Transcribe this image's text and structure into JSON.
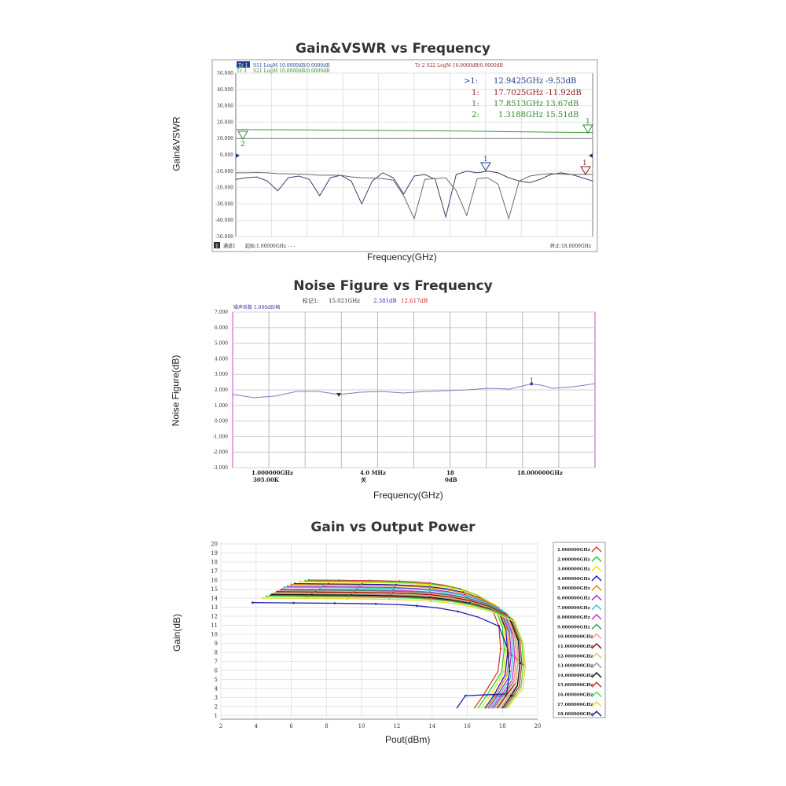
{
  "charts": {
    "gain_vswr": {
      "title": "Gain&VSWR vs Frequency",
      "xlabel": "Frequency(GHz)",
      "ylabel": "Gain&VSWR"
    },
    "noise": {
      "title": "Noise Figure vs Frequency",
      "xlabel": "Frequency(GHz)",
      "ylabel": "Noise Figure(dB)"
    },
    "gain_pout": {
      "title": "Gain vs Output Power",
      "xlabel": "Pout(dBm)",
      "ylabel": "Gain(dB)"
    }
  },
  "chart_data": [
    {
      "type": "line",
      "title": "Gain&VSWR vs Frequency",
      "xlabel": "Frequency(GHz)",
      "ylabel": "Gain&VSWR",
      "xlim": [
        1,
        18
      ],
      "ylim": [
        -50,
        50
      ],
      "yticks": [
        "50.000",
        "40.000",
        "30.000",
        "20.000",
        "10.000",
        "0.000",
        "-10.000",
        "-20.000",
        "-30.000",
        "-40.000",
        "-50.000"
      ],
      "header": {
        "tr1": "Tr 1",
        "tr1_text": "S11 LogM 10.0000dB/0.0000dB",
        "tr3": "Tr 3",
        "tr3_text": "S21 LogM 10.0000dB/0.0000dB",
        "tr2_text": "Tr 2  S22 LogM 10.0000dB/0.0000dB"
      },
      "markers": [
        {
          "label": ">1:",
          "freq": "12.9425GHz",
          "value": "-9.53dB",
          "color": "#1f3d8c"
        },
        {
          "label": "1:",
          "freq": "17.7025GHz",
          "value": "-11.92dB",
          "color": "#8b1a1a"
        },
        {
          "label": "1:",
          "freq": "17.8513GHz",
          "value": "13.67dB",
          "color": "#2e8b2e"
        },
        {
          "label": "2:",
          "freq": "1.3188GHz",
          "value": "15.51dB",
          "color": "#2e8b2e"
        }
      ],
      "marker_tags": [
        "1",
        "1",
        "1",
        "2"
      ],
      "footer": {
        "ch": "1",
        "ch_text": "通道1",
        "start": "起始:1.00000GHz - - -",
        "stop": "终止:18.0000GHz"
      },
      "series": [
        {
          "name": "S21",
          "color": "#3a9a3a",
          "x": [
            1,
            1.32,
            2,
            4,
            6,
            8,
            10,
            12,
            14,
            16,
            17.85,
            18
          ],
          "y": [
            15.5,
            15.51,
            15.4,
            15.3,
            15.1,
            14.9,
            14.7,
            14.5,
            14.2,
            13.9,
            13.67,
            13.6
          ]
        },
        {
          "name": "S11",
          "color": "#3a3f6a",
          "x": [
            1,
            1.5,
            2,
            2.5,
            3,
            3.5,
            4,
            4.5,
            5,
            5.5,
            6,
            6.5,
            7,
            7.5,
            8,
            8.5,
            9,
            9.5,
            10,
            10.5,
            11,
            11.5,
            12,
            12.5,
            13,
            13.5,
            14,
            14.5,
            15,
            15.5,
            16,
            16.5,
            17,
            17.5,
            18
          ],
          "y": [
            -15,
            -14,
            -13.5,
            -16,
            -22,
            -14,
            -13,
            -15,
            -25,
            -14,
            -12.5,
            -16,
            -30,
            -16,
            -11,
            -14,
            -24,
            -13,
            -12,
            -15,
            -38,
            -12,
            -10,
            -11,
            -10,
            -11,
            -14,
            -16,
            -17,
            -15,
            -12,
            -11,
            -12,
            -14,
            -16
          ]
        },
        {
          "name": "S22",
          "color": "#6a6a6a",
          "x": [
            1,
            1.5,
            2,
            2.5,
            3,
            3.5,
            4,
            4.5,
            5,
            5.5,
            6,
            6.5,
            7,
            7.5,
            8,
            8.5,
            9,
            9.5,
            10,
            10.5,
            11,
            11.5,
            12,
            12.5,
            13,
            13.5,
            14,
            14.5,
            15,
            15.5,
            16,
            16.5,
            17,
            17.5,
            18
          ],
          "y": [
            -11,
            -11,
            -10.8,
            -11,
            -11.5,
            -11.6,
            -11.8,
            -12,
            -12.5,
            -12.4,
            -12.5,
            -13.5,
            -14,
            -14.2,
            -14.5,
            -15.5,
            -25,
            -39,
            -15,
            -14.5,
            -14,
            -22,
            -37,
            -14.5,
            -14,
            -18,
            -39,
            -16,
            -13,
            -12,
            -11.5,
            -11.8,
            -12,
            -11.9,
            -12
          ]
        }
      ]
    },
    {
      "type": "line",
      "title": "Noise Figure vs Frequency",
      "xlabel": "Frequency(GHz)",
      "ylabel": "Noise Figure(dB)",
      "xlim": [
        1,
        18
      ],
      "ylim": [
        -3,
        7
      ],
      "yticks": [
        "7.000",
        "6.000",
        "5.000",
        "4.000",
        "3.000",
        "2.000",
        "1.000",
        "0.000",
        "-1.000",
        "-2.000",
        "-3.000"
      ],
      "header": {
        "scale": "噪声系数  1.000dB/格",
        "marker": "标记1:",
        "freq": "15.021GHz",
        "nf": "2.381dB",
        "gain": "12.617dB"
      },
      "footer": {
        "start": "1.000000GHz",
        "bw": "305.00K",
        "mid": "4.0  MHz",
        "mid2": "关",
        "avg": "18",
        "avg2": "0dB",
        "stop": "18.000000GHz"
      },
      "marker_tags": [
        "1"
      ],
      "series": [
        {
          "name": "Noise Figure",
          "color": "#7a7fb5",
          "x": [
            1,
            2,
            3,
            4,
            5,
            6,
            7,
            8,
            9,
            10,
            11,
            12,
            13,
            14,
            15,
            15.5,
            16,
            17,
            18
          ],
          "y": [
            1.7,
            1.5,
            1.6,
            1.9,
            1.9,
            1.7,
            1.85,
            1.9,
            1.8,
            1.9,
            1.95,
            2.0,
            2.1,
            2.05,
            2.381,
            2.3,
            2.1,
            2.2,
            2.4
          ]
        }
      ]
    },
    {
      "type": "line",
      "title": "Gain vs Output Power",
      "xlabel": "Pout(dBm)",
      "ylabel": "Gain(dB)",
      "xlim": [
        2,
        20
      ],
      "ylim": [
        1,
        20
      ],
      "xticks": [
        "2",
        "4",
        "6",
        "8",
        "10",
        "12",
        "14",
        "16",
        "18",
        "20"
      ],
      "yticks": [
        "20",
        "19",
        "18",
        "17",
        "16",
        "15",
        "14",
        "13",
        "12",
        "11",
        "10",
        "9",
        "8",
        "7",
        "6",
        "5",
        "4",
        "3",
        "2",
        "1"
      ],
      "legend": [
        {
          "name": "1.000000GHz",
          "color": "#d43c3c"
        },
        {
          "name": "2.000000GHz",
          "color": "#33cc33"
        },
        {
          "name": "3.000000GHz",
          "color": "#e6e600"
        },
        {
          "name": "4.000000GHz",
          "color": "#1a1aa6"
        },
        {
          "name": "5.000000GHz",
          "color": "#e68a00"
        },
        {
          "name": "6.000000GHz",
          "color": "#9933cc"
        },
        {
          "name": "7.000000GHz",
          "color": "#33cccc"
        },
        {
          "name": "8.000000GHz",
          "color": "#cc33cc"
        },
        {
          "name": "9.000000GHz",
          "color": "#339966"
        },
        {
          "name": "10.000000GHz",
          "color": "#ff9999"
        },
        {
          "name": "11.000000GHz",
          "color": "#990000"
        },
        {
          "name": "12.000000GHz",
          "color": "#cccc66"
        },
        {
          "name": "13.000000GHz",
          "color": "#999999"
        },
        {
          "name": "14.000000GHz",
          "color": "#111111"
        },
        {
          "name": "15.000000GHz",
          "color": "#cc3333"
        },
        {
          "name": "16.000000GHz",
          "color": "#44dd44"
        },
        {
          "name": "17.000000GHz",
          "color": "#dddd33"
        },
        {
          "name": "18.000000GHz",
          "color": "#2222aa"
        }
      ],
      "series_params": [
        {
          "g0": 16.0,
          "xs": 7.0,
          "xk": 17.3,
          "xb": 16.4
        },
        {
          "g0": 15.9,
          "xs": 6.8,
          "xk": 17.5,
          "xb": 16.6
        },
        {
          "g0": 15.8,
          "xs": 6.5,
          "xk": 17.6,
          "xb": 16.8
        },
        {
          "g0": 15.6,
          "xs": 6.2,
          "xk": 17.7,
          "xb": 17.0
        },
        {
          "g0": 15.5,
          "xs": 6.0,
          "xk": 17.8,
          "xb": 17.1
        },
        {
          "g0": 15.3,
          "xs": 5.8,
          "xk": 17.9,
          "xb": 17.2
        },
        {
          "g0": 15.2,
          "xs": 5.6,
          "xk": 18.0,
          "xb": 17.3
        },
        {
          "g0": 15.0,
          "xs": 5.5,
          "xk": 18.1,
          "xb": 17.4
        },
        {
          "g0": 14.9,
          "xs": 5.4,
          "xk": 18.2,
          "xb": 17.5
        },
        {
          "g0": 14.8,
          "xs": 5.3,
          "xk": 18.2,
          "xb": 17.6
        },
        {
          "g0": 14.7,
          "xs": 5.2,
          "xk": 18.3,
          "xb": 17.7
        },
        {
          "g0": 14.6,
          "xs": 5.1,
          "xk": 18.3,
          "xb": 17.8
        },
        {
          "g0": 14.5,
          "xs": 5.0,
          "xk": 18.4,
          "xb": 17.9
        },
        {
          "g0": 14.4,
          "xs": 4.9,
          "xk": 18.4,
          "xb": 18.0
        },
        {
          "g0": 14.3,
          "xs": 4.8,
          "xk": 18.5,
          "xb": 18.1
        },
        {
          "g0": 14.2,
          "xs": 4.6,
          "xk": 18.6,
          "xb": 18.2
        },
        {
          "g0": 14.0,
          "xs": 4.4,
          "xk": 18.7,
          "xb": 18.3
        },
        {
          "g0": 13.5,
          "xs": 3.8,
          "xk": 17.8,
          "xb": 15.4
        }
      ]
    }
  ]
}
